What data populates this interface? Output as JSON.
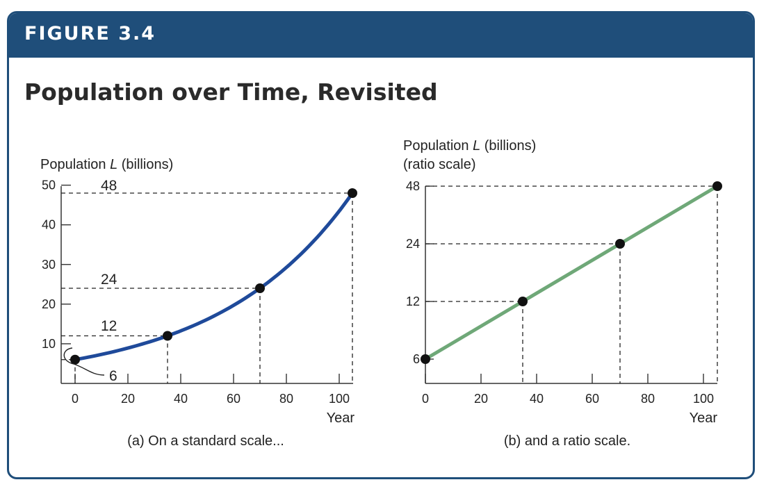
{
  "figure": {
    "label": "FIGURE 3.4",
    "title": "Population over Time, Revisited"
  },
  "colors": {
    "banner": "#1f4e7a",
    "line_a": "#1f4a9a",
    "line_b": "#6fa878",
    "point": "#111111"
  },
  "chart_data": [
    {
      "type": "line",
      "caption": "(a) On a standard scale...",
      "ylabel_prefix": "Population ",
      "ylabel_var": "L",
      "ylabel_suffix": " (billions)",
      "xlabel": "Year",
      "xlim": [
        -5,
        105
      ],
      "ylim": [
        0,
        50
      ],
      "x_ticks": [
        0,
        20,
        40,
        60,
        80,
        100
      ],
      "x_tick_labels": [
        "0",
        "20",
        "40",
        "60",
        "80",
        "100"
      ],
      "y_ticks": [
        10,
        20,
        30,
        40,
        50
      ],
      "y_tick_labels": [
        "10",
        "20",
        "30",
        "40",
        "50"
      ],
      "y_scale": "linear",
      "series": [
        {
          "x": [
            0,
            10,
            20,
            30,
            35,
            40,
            50,
            60,
            70,
            80,
            90,
            100,
            105
          ],
          "y": [
            6,
            6.8,
            8.0,
            10.2,
            12,
            13.5,
            17.2,
            20.8,
            24,
            29.0,
            35.5,
            43.5,
            48
          ]
        }
      ],
      "points": [
        {
          "x": 0,
          "y": 6
        },
        {
          "x": 35,
          "y": 12
        },
        {
          "x": 70,
          "y": 24
        },
        {
          "x": 105,
          "y": 48
        }
      ],
      "annotations": [
        "48",
        "24",
        "12",
        "6"
      ]
    },
    {
      "type": "line",
      "caption": "(b) and a ratio scale.",
      "ylabel_prefix": "Population ",
      "ylabel_var": "L",
      "ylabel_suffix": " (billions)",
      "ylabel_line2": "(ratio scale)",
      "xlabel": "Year",
      "xlim": [
        0,
        105
      ],
      "ylim": [
        5,
        48
      ],
      "x_ticks": [
        0,
        20,
        40,
        60,
        80,
        100
      ],
      "x_tick_labels": [
        "0",
        "20",
        "40",
        "60",
        "80",
        "100"
      ],
      "y_ticks": [
        6,
        12,
        24,
        48
      ],
      "y_tick_labels": [
        "6",
        "12",
        "24",
        "48"
      ],
      "y_scale": "log2",
      "series": [
        {
          "x": [
            0,
            35,
            70,
            105
          ],
          "y": [
            6,
            12,
            24,
            48
          ]
        }
      ],
      "points": [
        {
          "x": 0,
          "y": 6
        },
        {
          "x": 35,
          "y": 12
        },
        {
          "x": 70,
          "y": 24
        },
        {
          "x": 105,
          "y": 48
        }
      ]
    }
  ]
}
